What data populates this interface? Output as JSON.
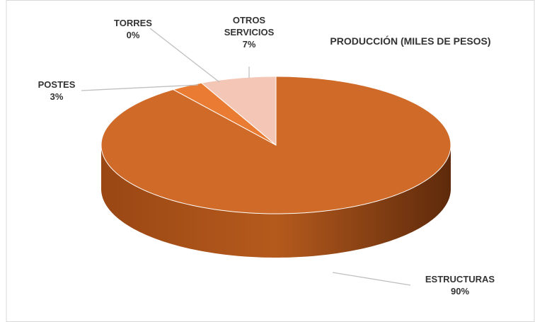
{
  "chart_data": {
    "type": "pie",
    "title": "PRODUCCIÓN (MILES DE PESOS)",
    "categories": [
      "ESTRUCTURAS",
      "POSTES",
      "TORRES",
      "OTROS SERVICIOS"
    ],
    "values": [
      90,
      3,
      0,
      7
    ],
    "value_labels": [
      "90%",
      "3%",
      "0%",
      "7%"
    ],
    "colors": [
      "#cf6a28",
      "#e97c32",
      "#e97c32",
      "#f3c6b6"
    ]
  }
}
